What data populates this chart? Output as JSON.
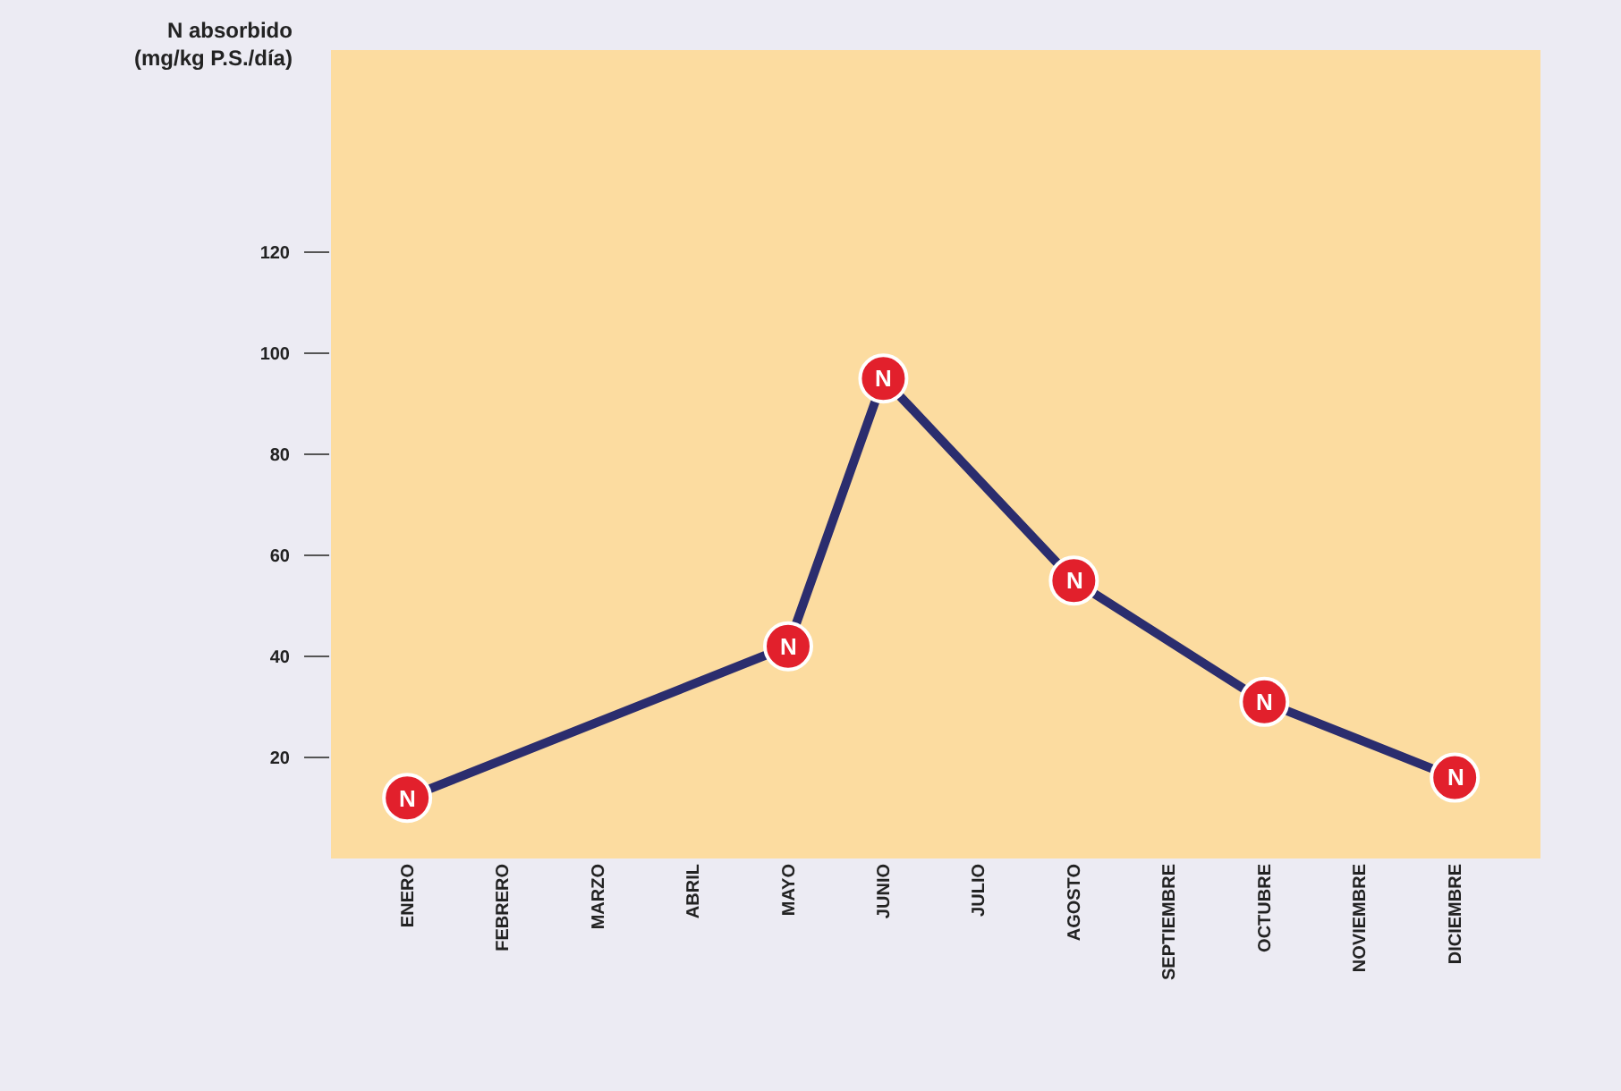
{
  "chart_data": {
    "type": "line",
    "ylabel": "N absorbido\n(mg/kg P.S./día)",
    "categories": [
      "ENERO",
      "FEBRERO",
      "MARZO",
      "ABRIL",
      "MAYO",
      "JUNIO",
      "JULIO",
      "AGOSTO",
      "SEPTIEMBRE",
      "OCTUBRE",
      "NOVIEMBRE",
      "DICIEMBRE"
    ],
    "series": [
      {
        "color": "#2b2d6e",
        "values": [
          12,
          null,
          null,
          null,
          42,
          95,
          null,
          55,
          null,
          31,
          null,
          16
        ]
      }
    ],
    "annotations": [
      {
        "text": "N",
        "x": "ENERO",
        "y": 12
      },
      {
        "text": "N",
        "x": "MAYO",
        "y": 42
      },
      {
        "text": "N",
        "x": "JUNIO",
        "y": 95
      },
      {
        "text": "N",
        "x": "AGOSTO",
        "y": 55
      },
      {
        "text": "N",
        "x": "OCTUBRE",
        "y": 31
      },
      {
        "text": "N",
        "x": "DICIEMBRE",
        "y": 16
      }
    ],
    "ylim": [
      0,
      160
    ],
    "yticks": [
      20,
      40,
      60,
      80,
      100,
      120
    ],
    "grid": false,
    "marker": "circle",
    "line_style": "solid"
  }
}
